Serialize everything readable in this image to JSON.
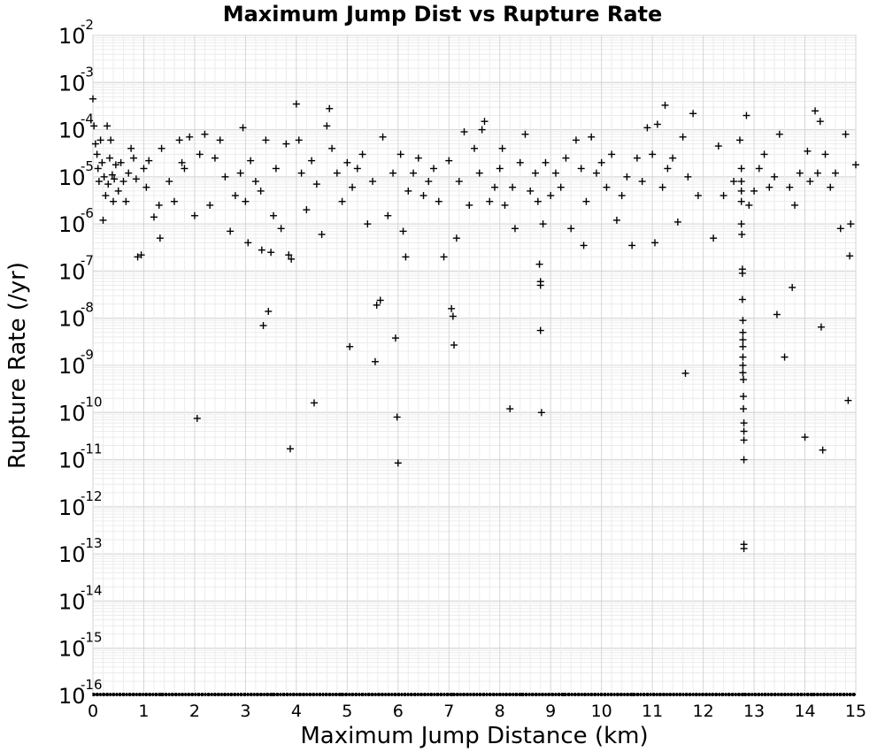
{
  "chart_data": {
    "type": "scatter",
    "title": "Maximum Jump Dist vs Rupture Rate",
    "xlabel": "Maximum Jump Distance (km)",
    "ylabel": "Rupture Rate (/yr)",
    "xlim": [
      0,
      15
    ],
    "ylim": [
      1e-16,
      0.01
    ],
    "yscale": "log",
    "grid": true,
    "marker": "+",
    "marker_color": "#000000",
    "x_ticks": [
      "0",
      "1",
      "2",
      "3",
      "4",
      "5",
      "6",
      "7",
      "8",
      "9",
      "10",
      "11",
      "12",
      "13",
      "14",
      "15"
    ],
    "y_ticks": [
      {
        "base": "10",
        "exp": "-16"
      },
      {
        "base": "10",
        "exp": "-15"
      },
      {
        "base": "10",
        "exp": "-14"
      },
      {
        "base": "10",
        "exp": "-13"
      },
      {
        "base": "10",
        "exp": "-12"
      },
      {
        "base": "10",
        "exp": "-11"
      },
      {
        "base": "10",
        "exp": "-10"
      },
      {
        "base": "10",
        "exp": "-9"
      },
      {
        "base": "10",
        "exp": "-8"
      },
      {
        "base": "10",
        "exp": "-7"
      },
      {
        "base": "10",
        "exp": "-6"
      },
      {
        "base": "10",
        "exp": "-5"
      },
      {
        "base": "10",
        "exp": "-4"
      },
      {
        "base": "10",
        "exp": "-3"
      },
      {
        "base": "10",
        "exp": "-2"
      }
    ],
    "series": [
      {
        "points": [
          [
            0.0,
            0.00045
          ],
          [
            0.02,
            0.00012
          ],
          [
            0.05,
            5e-05
          ],
          [
            0.08,
            3e-05
          ],
          [
            0.1,
            1.5e-05
          ],
          [
            0.12,
            8e-06
          ],
          [
            0.15,
            6e-05
          ],
          [
            0.18,
            2e-05
          ],
          [
            0.2,
            1.2e-06
          ],
          [
            0.22,
            1e-05
          ],
          [
            0.25,
            4e-06
          ],
          [
            0.28,
            0.00012
          ],
          [
            0.3,
            7e-06
          ],
          [
            0.33,
            2.5e-05
          ],
          [
            0.35,
            6e-05
          ],
          [
            0.38,
            1.1e-05
          ],
          [
            0.4,
            3e-06
          ],
          [
            0.42,
            9e-06
          ],
          [
            0.45,
            1.8e-05
          ],
          [
            0.5,
            5e-06
          ],
          [
            0.55,
            2e-05
          ],
          [
            0.6,
            8e-06
          ],
          [
            0.65,
            3e-06
          ],
          [
            0.7,
            1.2e-05
          ],
          [
            0.75,
            4e-05
          ],
          [
            0.8,
            2.5e-05
          ],
          [
            0.85,
            9e-06
          ],
          [
            0.88,
            2e-07
          ],
          [
            0.95,
            2.2e-07
          ],
          [
            1.0,
            1.5e-05
          ],
          [
            1.05,
            6e-06
          ],
          [
            1.1,
            2.2e-05
          ],
          [
            1.2,
            1.4e-06
          ],
          [
            1.3,
            2.5e-06
          ],
          [
            1.32,
            5e-07
          ],
          [
            1.35,
            4e-05
          ],
          [
            1.5,
            8e-06
          ],
          [
            1.6,
            3e-06
          ],
          [
            1.7,
            6e-05
          ],
          [
            1.75,
            2e-05
          ],
          [
            1.8,
            1.5e-05
          ],
          [
            1.9,
            7e-05
          ],
          [
            2.0,
            1.5e-06
          ],
          [
            2.05,
            7.5e-11
          ],
          [
            2.1,
            3e-05
          ],
          [
            2.2,
            8e-05
          ],
          [
            2.3,
            2.5e-06
          ],
          [
            2.4,
            2.5e-05
          ],
          [
            2.5,
            6e-05
          ],
          [
            2.6,
            1e-05
          ],
          [
            2.7,
            7e-07
          ],
          [
            2.8,
            4e-06
          ],
          [
            2.9,
            1.2e-05
          ],
          [
            2.95,
            0.00011
          ],
          [
            3.0,
            3e-06
          ],
          [
            3.05,
            4e-07
          ],
          [
            3.1,
            2.2e-05
          ],
          [
            3.2,
            8e-06
          ],
          [
            3.3,
            5e-06
          ],
          [
            3.32,
            2.8e-07
          ],
          [
            3.35,
            7e-09
          ],
          [
            3.4,
            6e-05
          ],
          [
            3.45,
            1.4e-08
          ],
          [
            3.5,
            2.5e-07
          ],
          [
            3.55,
            1.5e-06
          ],
          [
            3.6,
            1.5e-05
          ],
          [
            3.7,
            8e-07
          ],
          [
            3.8,
            5e-05
          ],
          [
            3.85,
            2.2e-07
          ],
          [
            3.88,
            1.7e-11
          ],
          [
            3.9,
            1.8e-07
          ],
          [
            4.0,
            0.00035
          ],
          [
            4.05,
            6e-05
          ],
          [
            4.1,
            1.2e-05
          ],
          [
            4.2,
            2e-06
          ],
          [
            4.3,
            2.2e-05
          ],
          [
            4.35,
            1.6e-10
          ],
          [
            4.4,
            7e-06
          ],
          [
            4.5,
            6e-07
          ],
          [
            4.6,
            0.00012
          ],
          [
            4.65,
            0.00028
          ],
          [
            4.7,
            4e-05
          ],
          [
            4.8,
            1.2e-05
          ],
          [
            4.9,
            3e-06
          ],
          [
            5.0,
            2e-05
          ],
          [
            5.05,
            2.5e-09
          ],
          [
            5.1,
            6e-06
          ],
          [
            5.2,
            1.5e-05
          ],
          [
            5.3,
            3e-05
          ],
          [
            5.4,
            1e-06
          ],
          [
            5.5,
            8e-06
          ],
          [
            5.55,
            1.2e-09
          ],
          [
            5.58,
            1.9e-08
          ],
          [
            5.65,
            2.4e-08
          ],
          [
            5.7,
            7e-05
          ],
          [
            5.8,
            1.5e-06
          ],
          [
            5.9,
            1.2e-05
          ],
          [
            5.95,
            3.8e-09
          ],
          [
            5.98,
            8e-11
          ],
          [
            6.0,
            8.5e-12
          ],
          [
            6.05,
            3e-05
          ],
          [
            6.1,
            7e-07
          ],
          [
            6.15,
            2e-07
          ],
          [
            6.2,
            5e-06
          ],
          [
            6.3,
            1.2e-05
          ],
          [
            6.4,
            2.5e-05
          ],
          [
            6.5,
            4e-06
          ],
          [
            6.6,
            8e-06
          ],
          [
            6.7,
            1.5e-05
          ],
          [
            6.8,
            3e-06
          ],
          [
            6.9,
            2e-07
          ],
          [
            7.0,
            2.2e-05
          ],
          [
            7.05,
            1.6e-08
          ],
          [
            7.08,
            1.1e-08
          ],
          [
            7.1,
            2.7e-09
          ],
          [
            7.15,
            5e-07
          ],
          [
            7.2,
            8e-06
          ],
          [
            7.3,
            9e-05
          ],
          [
            7.4,
            2.5e-06
          ],
          [
            7.5,
            4e-05
          ],
          [
            7.6,
            1.2e-05
          ],
          [
            7.65,
            0.0001
          ],
          [
            7.7,
            0.00015
          ],
          [
            7.8,
            3e-06
          ],
          [
            7.9,
            6e-06
          ],
          [
            8.0,
            1.5e-05
          ],
          [
            8.05,
            4e-05
          ],
          [
            8.1,
            2.5e-06
          ],
          [
            8.2,
            1.2e-10
          ],
          [
            8.25,
            6e-06
          ],
          [
            8.3,
            8e-07
          ],
          [
            8.4,
            2e-05
          ],
          [
            8.5,
            8e-05
          ],
          [
            8.6,
            5e-06
          ],
          [
            8.7,
            1.2e-05
          ],
          [
            8.75,
            3e-06
          ],
          [
            8.78,
            1.4e-07
          ],
          [
            8.8,
            6e-08
          ],
          [
            8.8,
            5e-08
          ],
          [
            8.8,
            5.5e-09
          ],
          [
            8.82,
            1e-10
          ],
          [
            8.85,
            1e-06
          ],
          [
            8.9,
            2e-05
          ],
          [
            9.0,
            4e-06
          ],
          [
            9.1,
            1.2e-05
          ],
          [
            9.2,
            6e-06
          ],
          [
            9.3,
            2.5e-05
          ],
          [
            9.4,
            8e-07
          ],
          [
            9.5,
            6e-05
          ],
          [
            9.6,
            1.5e-05
          ],
          [
            9.65,
            3.5e-07
          ],
          [
            9.7,
            3e-06
          ],
          [
            9.8,
            7e-05
          ],
          [
            9.9,
            1.2e-05
          ],
          [
            10.0,
            2e-05
          ],
          [
            10.1,
            6e-06
          ],
          [
            10.2,
            3e-05
          ],
          [
            10.3,
            1.2e-06
          ],
          [
            10.4,
            4e-06
          ],
          [
            10.5,
            1e-05
          ],
          [
            10.6,
            3.5e-07
          ],
          [
            10.7,
            2.5e-05
          ],
          [
            10.8,
            8e-06
          ],
          [
            10.9,
            0.00011
          ],
          [
            11.0,
            3e-05
          ],
          [
            11.05,
            4e-07
          ],
          [
            11.1,
            0.00013
          ],
          [
            11.2,
            6e-06
          ],
          [
            11.25,
            0.00033
          ],
          [
            11.3,
            1.5e-05
          ],
          [
            11.4,
            2.5e-05
          ],
          [
            11.5,
            1.1e-06
          ],
          [
            11.6,
            7e-05
          ],
          [
            11.65,
            6.8e-10
          ],
          [
            11.7,
            1e-05
          ],
          [
            11.8,
            0.00022
          ],
          [
            11.9,
            4e-06
          ],
          [
            12.2,
            5e-07
          ],
          [
            12.3,
            4.5e-05
          ],
          [
            12.4,
            4e-06
          ],
          [
            12.6,
            8e-06
          ],
          [
            12.72,
            6e-05
          ],
          [
            12.75,
            1.5e-05
          ],
          [
            12.75,
            8e-06
          ],
          [
            12.75,
            5e-06
          ],
          [
            12.75,
            3e-06
          ],
          [
            12.75,
            1e-06
          ],
          [
            12.76,
            6e-07
          ],
          [
            12.77,
            1.1e-07
          ],
          [
            12.77,
            9e-08
          ],
          [
            12.77,
            2.5e-08
          ],
          [
            12.78,
            9e-09
          ],
          [
            12.78,
            5e-09
          ],
          [
            12.78,
            3.5e-09
          ],
          [
            12.78,
            2.5e-09
          ],
          [
            12.78,
            1.5e-09
          ],
          [
            12.78,
            1e-09
          ],
          [
            12.78,
            7e-10
          ],
          [
            12.79,
            5e-10
          ],
          [
            12.79,
            2.2e-10
          ],
          [
            12.79,
            1.2e-10
          ],
          [
            12.8,
            6e-11
          ],
          [
            12.8,
            4e-11
          ],
          [
            12.8,
            2.6e-11
          ],
          [
            12.8,
            1e-11
          ],
          [
            12.8,
            1.6e-13
          ],
          [
            12.8,
            1.3e-13
          ],
          [
            12.85,
            0.0002
          ],
          [
            12.9,
            2.5e-06
          ],
          [
            13.0,
            5e-06
          ],
          [
            13.1,
            1.5e-05
          ],
          [
            13.2,
            3e-05
          ],
          [
            13.3,
            6e-06
          ],
          [
            13.4,
            1e-05
          ],
          [
            13.45,
            1.2e-08
          ],
          [
            13.5,
            8e-05
          ],
          [
            13.6,
            1.5e-09
          ],
          [
            13.7,
            6e-06
          ],
          [
            13.75,
            4.5e-08
          ],
          [
            13.8,
            2.5e-06
          ],
          [
            13.9,
            1.2e-05
          ],
          [
            14.0,
            3e-11
          ],
          [
            14.05,
            3.5e-05
          ],
          [
            14.1,
            8e-06
          ],
          [
            14.2,
            0.00025
          ],
          [
            14.25,
            1.2e-05
          ],
          [
            14.3,
            0.00015
          ],
          [
            14.32,
            6.5e-09
          ],
          [
            14.35,
            1.6e-11
          ],
          [
            14.4,
            3e-05
          ],
          [
            14.5,
            6e-06
          ],
          [
            14.6,
            1.2e-05
          ],
          [
            14.7,
            8e-07
          ],
          [
            14.8,
            8e-05
          ],
          [
            14.85,
            1.8e-10
          ],
          [
            14.88,
            2.1e-07
          ],
          [
            14.9,
            1e-06
          ],
          [
            15.0,
            1.8e-05
          ]
        ]
      }
    ]
  }
}
